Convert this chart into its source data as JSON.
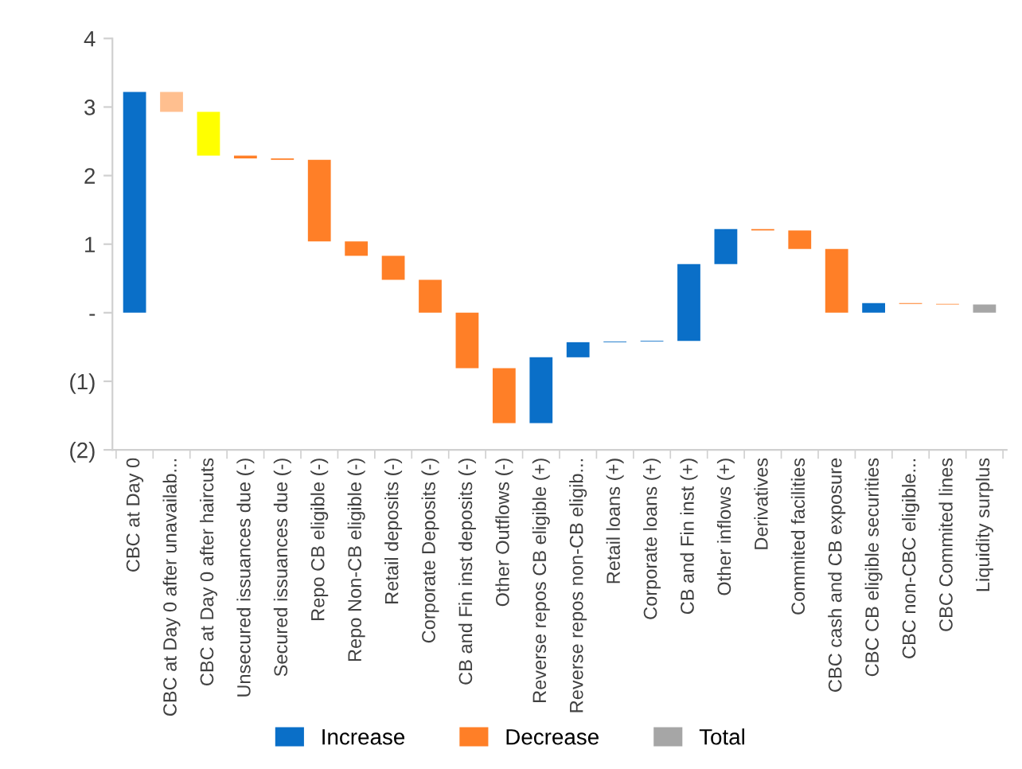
{
  "chart_data": {
    "type": "bar",
    "categories": [
      "CBC at Day 0",
      "CBC at Day 0 after unavailab...",
      "CBC at Day 0 after haircuts",
      "Unsecured issuances due (-)",
      "Secured issuances due (-)",
      "Repo CB eligible (-)",
      "Repo Non-CB eligible (-)",
      "Retail deposits (-)",
      "Corporate Deposits (-)",
      "CB and Fin inst deposits (-)",
      "Other Outflows (-)",
      "Reverse repos CB eligible (+)",
      "Reverse repos non-CB eligib...",
      "Retail loans (+)",
      "Corporate loans (+)",
      "CB and Fin inst (+)",
      "Other inflows (+)",
      "Derivatives",
      "Commited facilities",
      "CBC cash and CB exposure",
      "CBC CB eligible securities",
      "CBC non-CBC eligible...",
      "CBC Commited lines",
      "Liquidity surplus"
    ],
    "series": [
      {
        "name": "Increase",
        "color": "#0a6fc8",
        "base": [
          0,
          null,
          null,
          null,
          null,
          null,
          null,
          null,
          null,
          null,
          null,
          -1.61,
          -0.65,
          -0.43,
          -0.42,
          -0.41,
          0.71,
          null,
          null,
          null,
          0,
          null,
          null,
          null
        ],
        "values": [
          3.22,
          null,
          null,
          null,
          null,
          null,
          null,
          null,
          null,
          null,
          null,
          0.96,
          0.22,
          0.01,
          0.01,
          1.12,
          0.51,
          null,
          null,
          null,
          0.14,
          null,
          null,
          null
        ]
      },
      {
        "name": "Decrease",
        "color": "#ff7f27",
        "colors": [
          null,
          "#ffbf8f",
          "#ffff00",
          "#ff7f27",
          "#ff7f27",
          "#ff7f27",
          "#ff7f27",
          "#ff7f27",
          "#ff7f27",
          "#ff7f27",
          "#ff7f27",
          null,
          null,
          null,
          null,
          null,
          null,
          "#ff7f27",
          "#ff7f27",
          "#ff7f27",
          null,
          "#ff7f27",
          "#ff7f27",
          null
        ],
        "base": [
          null,
          3.22,
          2.93,
          2.29,
          2.25,
          2.23,
          1.04,
          0.83,
          0.48,
          0,
          -0.81,
          null,
          null,
          null,
          null,
          null,
          null,
          1.22,
          1.2,
          0.93,
          null,
          0.14,
          0.13,
          null
        ],
        "values": [
          null,
          -0.29,
          -0.64,
          -0.04,
          -0.02,
          -1.19,
          -0.21,
          -0.35,
          -0.48,
          -0.81,
          -0.8,
          null,
          null,
          null,
          null,
          null,
          null,
          -0.02,
          -0.27,
          -0.93,
          null,
          -0.01,
          -0.01,
          null
        ]
      },
      {
        "name": "Total",
        "color": "#a6a6a6",
        "base": [
          null,
          null,
          null,
          null,
          null,
          null,
          null,
          null,
          null,
          null,
          null,
          null,
          null,
          null,
          null,
          null,
          null,
          null,
          null,
          null,
          null,
          null,
          null,
          0
        ],
        "values": [
          null,
          null,
          null,
          null,
          null,
          null,
          null,
          null,
          null,
          null,
          null,
          null,
          null,
          null,
          null,
          null,
          null,
          null,
          null,
          null,
          null,
          null,
          null,
          0.12
        ]
      }
    ],
    "ylim": [
      -2,
      4
    ],
    "yticks": [
      {
        "value": -2,
        "label": "(2)"
      },
      {
        "value": -1,
        "label": "(1)"
      },
      {
        "value": 0,
        "label": "-"
      },
      1,
      2,
      3,
      4
    ],
    "legend": "bottom"
  }
}
